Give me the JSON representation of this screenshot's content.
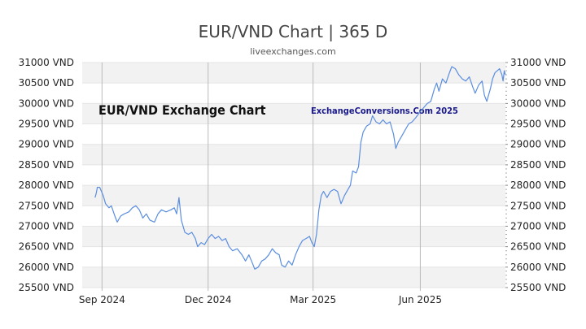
{
  "colors": {
    "line": "#5b8ee0",
    "band": "#f2f2f2",
    "grid": "#cccccc",
    "vgrid": "#bbbbbb"
  },
  "chart_data": {
    "type": "line",
    "title": "EUR/VND Chart | 365 D",
    "subtitle": "liveexchanges.com",
    "annotations": [
      "EUR/VND Exchange Chart",
      "ExchangeConversions.Com 2025"
    ],
    "xlabel": "",
    "ylabel": "",
    "xlim": [
      "2024-08-15",
      "2025-08-13"
    ],
    "ylim": [
      25500,
      31000
    ],
    "y_ticks": [
      25500,
      26000,
      26500,
      27000,
      27500,
      28000,
      28500,
      29000,
      29500,
      30000,
      30500,
      31000
    ],
    "y_tick_labels": [
      "25500 VND",
      "26000 VND",
      "26500 VND",
      "27000 VND",
      "27500 VND",
      "28000 VND",
      "28500 VND",
      "29000 VND",
      "29500 VND",
      "30000 VND",
      "30500 VND",
      "31000 VND"
    ],
    "x_ticks": [
      {
        "x": "2024-09-01",
        "label": "Sep 2024"
      },
      {
        "x": "2024-12-01",
        "label": "Dec 2024"
      },
      {
        "x": "2025-03-01",
        "label": "Mar 2025"
      },
      {
        "x": "2025-06-01",
        "label": "Jun 2025"
      }
    ],
    "grid": "alternating horizontal bands with vertical lines at month ticks",
    "legend": "none",
    "series": [
      {
        "points": [
          [
            "2024-08-26",
            27700
          ],
          [
            "2024-08-27",
            27800
          ],
          [
            "2024-08-28",
            27950
          ],
          [
            "2024-08-30",
            27950
          ],
          [
            "2024-09-02",
            27750
          ],
          [
            "2024-09-04",
            27550
          ],
          [
            "2024-09-07",
            27450
          ],
          [
            "2024-09-09",
            27500
          ],
          [
            "2024-09-12",
            27250
          ],
          [
            "2024-09-14",
            27100
          ],
          [
            "2024-09-17",
            27250
          ],
          [
            "2024-09-20",
            27300
          ],
          [
            "2024-09-24",
            27350
          ],
          [
            "2024-09-27",
            27450
          ],
          [
            "2024-09-30",
            27500
          ],
          [
            "2024-10-03",
            27400
          ],
          [
            "2024-10-06",
            27200
          ],
          [
            "2024-10-09",
            27300
          ],
          [
            "2024-10-12",
            27150
          ],
          [
            "2024-10-16",
            27100
          ],
          [
            "2024-10-19",
            27300
          ],
          [
            "2024-10-22",
            27400
          ],
          [
            "2024-10-26",
            27350
          ],
          [
            "2024-10-30",
            27400
          ],
          [
            "2024-11-02",
            27450
          ],
          [
            "2024-11-04",
            27300
          ],
          [
            "2024-11-06",
            27700
          ],
          [
            "2024-11-08",
            27150
          ],
          [
            "2024-11-11",
            26850
          ],
          [
            "2024-11-14",
            26800
          ],
          [
            "2024-11-17",
            26850
          ],
          [
            "2024-11-20",
            26700
          ],
          [
            "2024-11-22",
            26500
          ],
          [
            "2024-11-25",
            26600
          ],
          [
            "2024-11-28",
            26550
          ],
          [
            "2024-12-01",
            26700
          ],
          [
            "2024-12-04",
            26800
          ],
          [
            "2024-12-07",
            26700
          ],
          [
            "2024-12-10",
            26750
          ],
          [
            "2024-12-13",
            26650
          ],
          [
            "2024-12-16",
            26700
          ],
          [
            "2024-12-19",
            26500
          ],
          [
            "2024-12-22",
            26400
          ],
          [
            "2024-12-26",
            26450
          ],
          [
            "2024-12-30",
            26300
          ],
          [
            "2025-01-02",
            26150
          ],
          [
            "2025-01-05",
            26300
          ],
          [
            "2025-01-08",
            26100
          ],
          [
            "2025-01-10",
            25950
          ],
          [
            "2025-01-13",
            26000
          ],
          [
            "2025-01-16",
            26150
          ],
          [
            "2025-01-19",
            26200
          ],
          [
            "2025-01-22",
            26300
          ],
          [
            "2025-01-25",
            26450
          ],
          [
            "2025-01-28",
            26350
          ],
          [
            "2025-01-31",
            26300
          ],
          [
            "2025-02-02",
            26050
          ],
          [
            "2025-02-05",
            26000
          ],
          [
            "2025-02-08",
            26150
          ],
          [
            "2025-02-11",
            26050
          ],
          [
            "2025-02-14",
            26300
          ],
          [
            "2025-02-17",
            26500
          ],
          [
            "2025-02-20",
            26650
          ],
          [
            "2025-02-23",
            26700
          ],
          [
            "2025-02-26",
            26750
          ],
          [
            "2025-02-28",
            26600
          ],
          [
            "2025-03-02",
            26500
          ],
          [
            "2025-03-04",
            26800
          ],
          [
            "2025-03-06",
            27400
          ],
          [
            "2025-03-08",
            27750
          ],
          [
            "2025-03-10",
            27850
          ],
          [
            "2025-03-13",
            27700
          ],
          [
            "2025-03-16",
            27850
          ],
          [
            "2025-03-19",
            27900
          ],
          [
            "2025-03-22",
            27850
          ],
          [
            "2025-03-25",
            27550
          ],
          [
            "2025-03-28",
            27750
          ],
          [
            "2025-03-31",
            27900
          ],
          [
            "2025-04-02",
            28000
          ],
          [
            "2025-04-04",
            28350
          ],
          [
            "2025-04-07",
            28300
          ],
          [
            "2025-04-09",
            28450
          ],
          [
            "2025-04-11",
            29050
          ],
          [
            "2025-04-13",
            29300
          ],
          [
            "2025-04-16",
            29450
          ],
          [
            "2025-04-19",
            29500
          ],
          [
            "2025-04-21",
            29700
          ],
          [
            "2025-04-24",
            29550
          ],
          [
            "2025-04-27",
            29500
          ],
          [
            "2025-04-30",
            29600
          ],
          [
            "2025-05-03",
            29500
          ],
          [
            "2025-05-06",
            29550
          ],
          [
            "2025-05-09",
            29250
          ],
          [
            "2025-05-11",
            28900
          ],
          [
            "2025-05-13",
            29050
          ],
          [
            "2025-05-16",
            29200
          ],
          [
            "2025-05-19",
            29350
          ],
          [
            "2025-05-22",
            29500
          ],
          [
            "2025-05-25",
            29550
          ],
          [
            "2025-05-28",
            29650
          ],
          [
            "2025-06-01",
            29800
          ],
          [
            "2025-06-04",
            29900
          ],
          [
            "2025-06-07",
            30000
          ],
          [
            "2025-06-10",
            30050
          ],
          [
            "2025-06-13",
            30350
          ],
          [
            "2025-06-15",
            30500
          ],
          [
            "2025-06-17",
            30300
          ],
          [
            "2025-06-20",
            30600
          ],
          [
            "2025-06-23",
            30500
          ],
          [
            "2025-06-26",
            30750
          ],
          [
            "2025-06-28",
            30900
          ],
          [
            "2025-07-01",
            30850
          ],
          [
            "2025-07-04",
            30700
          ],
          [
            "2025-07-07",
            30600
          ],
          [
            "2025-07-10",
            30550
          ],
          [
            "2025-07-13",
            30650
          ],
          [
            "2025-07-16",
            30400
          ],
          [
            "2025-07-18",
            30250
          ],
          [
            "2025-07-21",
            30450
          ],
          [
            "2025-07-24",
            30550
          ],
          [
            "2025-07-26",
            30200
          ],
          [
            "2025-07-28",
            30050
          ],
          [
            "2025-07-31",
            30350
          ],
          [
            "2025-08-02",
            30600
          ],
          [
            "2025-08-04",
            30750
          ],
          [
            "2025-08-06",
            30800
          ],
          [
            "2025-08-08",
            30850
          ],
          [
            "2025-08-10",
            30700
          ],
          [
            "2025-08-11",
            30550
          ],
          [
            "2025-08-12",
            30800
          ],
          [
            "2025-08-13",
            30700
          ]
        ]
      }
    ]
  }
}
